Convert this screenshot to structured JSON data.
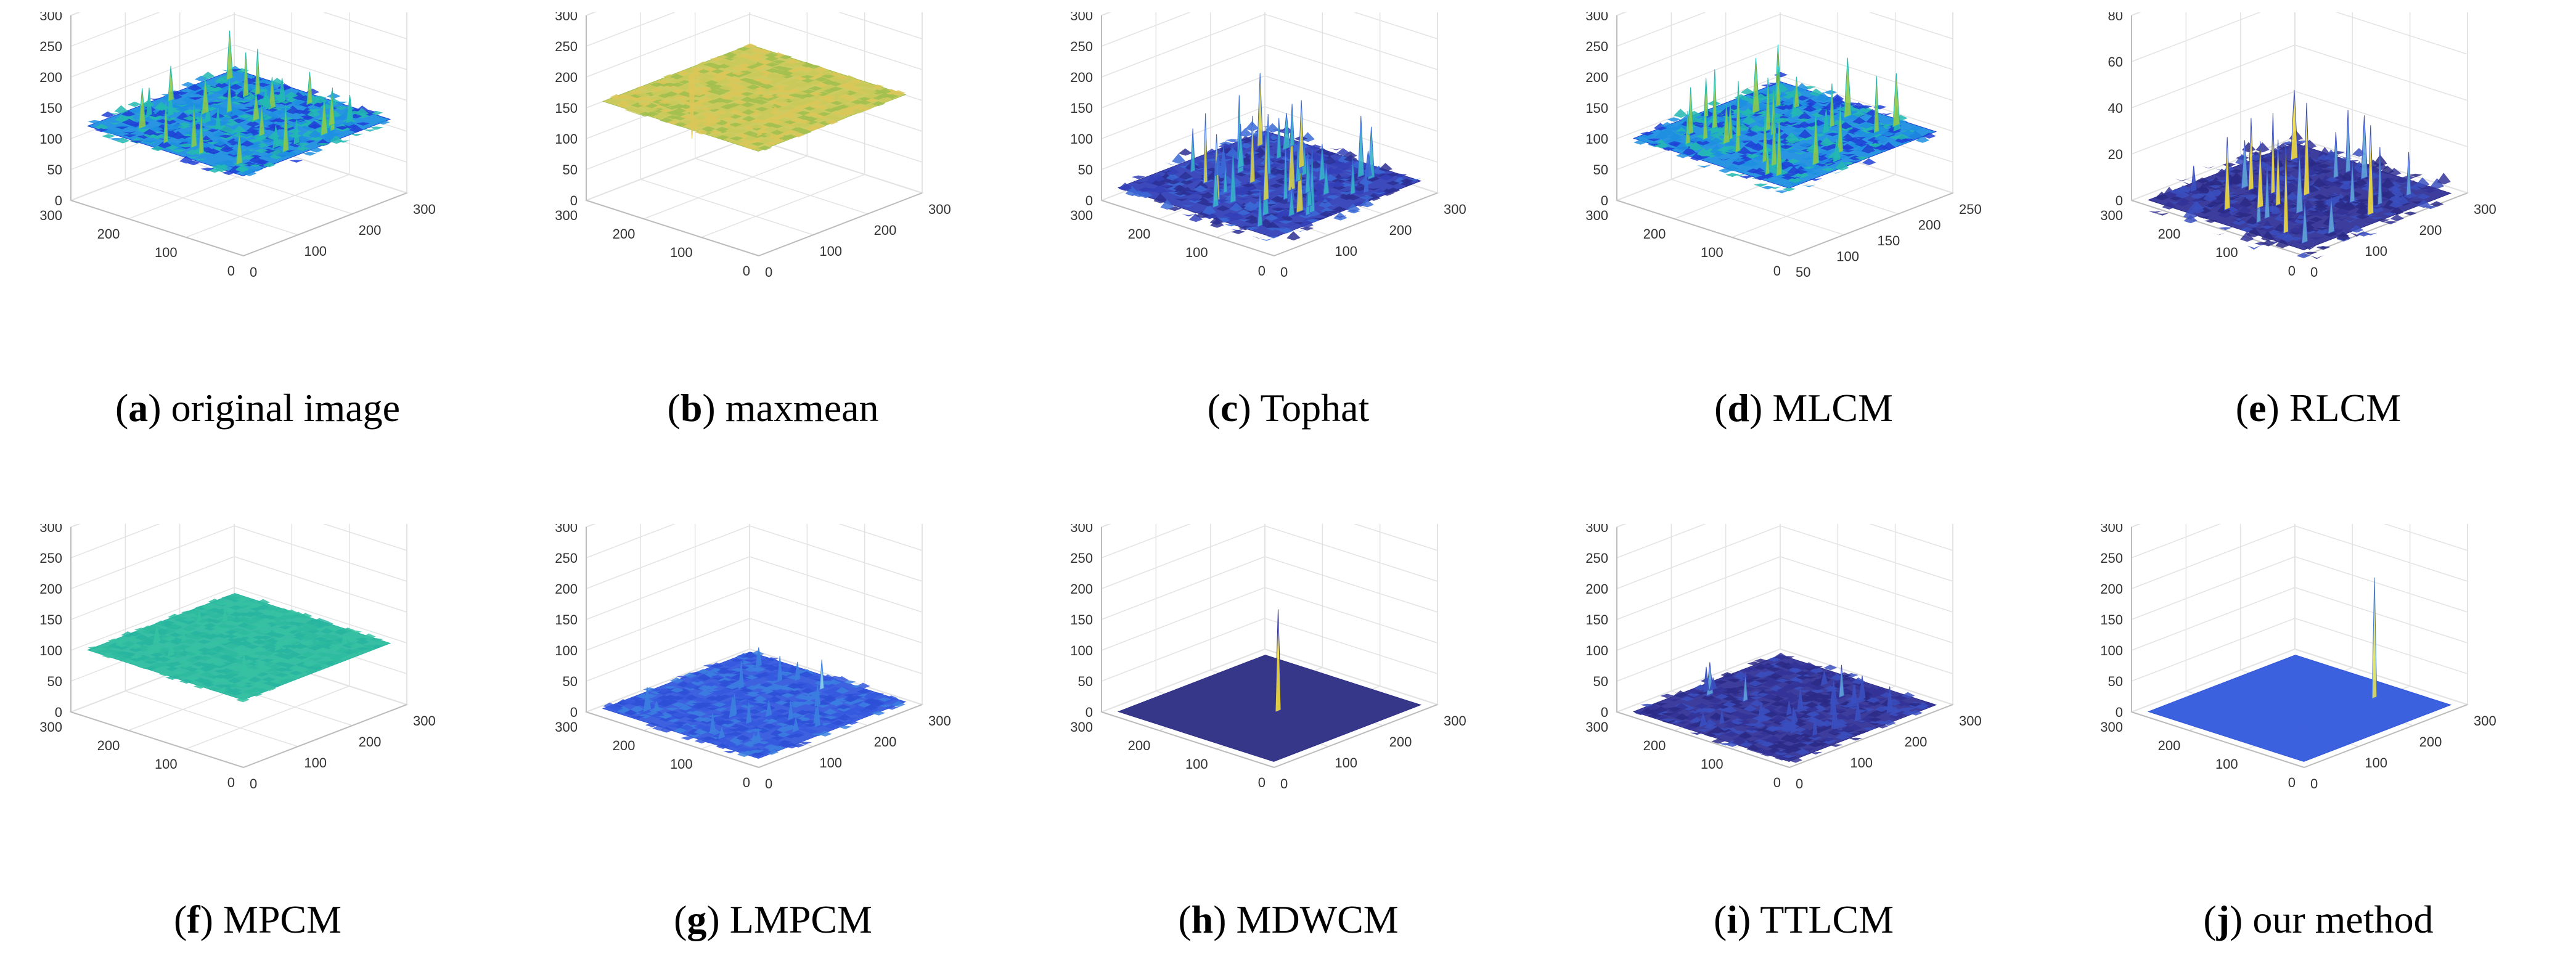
{
  "figure": {
    "subject": "3D surface plots of target detection maps"
  },
  "chart_data": [
    {
      "id": "a",
      "letter": "a",
      "caption": "original image",
      "type": "surface",
      "zticks": [
        "0",
        "50",
        "100",
        "150",
        "200",
        "250",
        "300"
      ],
      "xticks": [
        "0",
        "100",
        "200",
        "300"
      ],
      "yticks": [
        "0",
        "100",
        "200",
        "300"
      ],
      "zlim": [
        0,
        300
      ],
      "base": 120,
      "noise": 40,
      "style": "orig"
    },
    {
      "id": "b",
      "letter": "b",
      "caption": "maxmean",
      "type": "surface",
      "zticks": [
        "0",
        "50",
        "100",
        "150",
        "200",
        "250",
        "300"
      ],
      "xticks": [
        "0",
        "100",
        "200",
        "300"
      ],
      "yticks": [
        "0",
        "100",
        "200",
        "300"
      ],
      "zlim": [
        0,
        300
      ],
      "base": 160,
      "noise": 10,
      "style": "flat-yellow"
    },
    {
      "id": "c",
      "letter": "c",
      "caption": "Tophat",
      "type": "surface",
      "zticks": [
        "0",
        "50",
        "100",
        "150",
        "200",
        "250",
        "300"
      ],
      "xticks": [
        "0",
        "100",
        "200",
        "300"
      ],
      "yticks": [
        "0",
        "100",
        "200",
        "300"
      ],
      "zlim": [
        0,
        300
      ],
      "base": 20,
      "noise": 60,
      "style": "spiky"
    },
    {
      "id": "d",
      "letter": "d",
      "caption": "MLCM",
      "type": "surface",
      "zticks": [
        "0",
        "50",
        "100",
        "150",
        "200",
        "250",
        "300"
      ],
      "xticks": [
        "50",
        "100",
        "150",
        "200",
        "250"
      ],
      "yticks": [
        "0",
        "100",
        "200",
        "300"
      ],
      "zlim": [
        0,
        300
      ],
      "base": 100,
      "noise": 50,
      "style": "orig"
    },
    {
      "id": "e",
      "letter": "e",
      "caption": "RLCM",
      "type": "surface",
      "zticks": [
        "0",
        "20",
        "40",
        "60",
        "80"
      ],
      "xticks": [
        "0",
        "100",
        "200",
        "300"
      ],
      "yticks": [
        "0",
        "100",
        "200",
        "300"
      ],
      "zlim": [
        0,
        80
      ],
      "base": 0,
      "noise": 20,
      "style": "dark-spikes"
    },
    {
      "id": "f",
      "letter": "f",
      "caption": "MPCM",
      "type": "surface",
      "zticks": [
        "0",
        "50",
        "100",
        "150",
        "200",
        "250",
        "300"
      ],
      "xticks": [
        "0",
        "100",
        "200",
        "300"
      ],
      "yticks": [
        "0",
        "100",
        "200",
        "300"
      ],
      "zlim": [
        0,
        300
      ],
      "base": 100,
      "noise": 15,
      "style": "flat-teal"
    },
    {
      "id": "g",
      "letter": "g",
      "caption": "LMPCM",
      "type": "surface",
      "zticks": [
        "0",
        "50",
        "100",
        "150",
        "200",
        "250",
        "300"
      ],
      "xticks": [
        "0",
        "100",
        "200",
        "300"
      ],
      "yticks": [
        "0",
        "100",
        "200",
        "300"
      ],
      "zlim": [
        0,
        300
      ],
      "base": 5,
      "noise": 25,
      "style": "blue-spikes"
    },
    {
      "id": "h",
      "letter": "h",
      "caption": "MDWCM",
      "type": "surface",
      "zticks": [
        "0",
        "50",
        "100",
        "150",
        "200",
        "250",
        "300"
      ],
      "xticks": [
        "0",
        "100",
        "200",
        "300"
      ],
      "yticks": [
        "0",
        "100",
        "200",
        "300"
      ],
      "zlim": [
        0,
        300
      ],
      "base": 0,
      "noise": 0,
      "style": "single-dark"
    },
    {
      "id": "i",
      "letter": "i",
      "caption": "TTLCM",
      "type": "surface",
      "zticks": [
        "0",
        "50",
        "100",
        "150",
        "200",
        "250",
        "300"
      ],
      "xticks": [
        "0",
        "100",
        "200",
        "300"
      ],
      "yticks": [
        "0",
        "100",
        "200",
        "300"
      ],
      "zlim": [
        0,
        300
      ],
      "base": 0,
      "noise": 30,
      "style": "dark-spikes"
    },
    {
      "id": "j",
      "letter": "j",
      "caption": "our method",
      "type": "surface",
      "zticks": [
        "0",
        "50",
        "100",
        "150",
        "200",
        "250",
        "300"
      ],
      "xticks": [
        "0",
        "100",
        "200",
        "300"
      ],
      "yticks": [
        "0",
        "100",
        "200",
        "300"
      ],
      "zlim": [
        0,
        300
      ],
      "base": 0,
      "noise": 0,
      "style": "single-blue"
    }
  ]
}
